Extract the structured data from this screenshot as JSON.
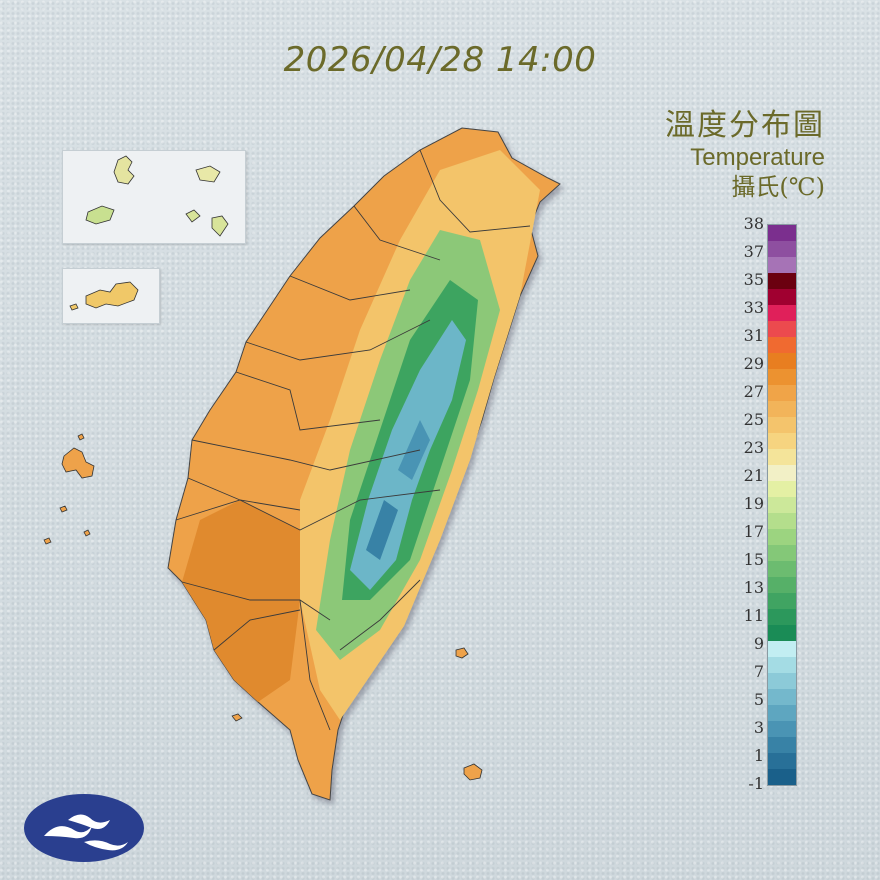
{
  "timestamp": "2026/04/28 14:00",
  "legend": {
    "title_zh": "溫度分布圖",
    "title_en": "Temperature",
    "unit": "攝氏(℃)",
    "ticks": [
      "38",
      "37",
      "35",
      "33",
      "31",
      "29",
      "27",
      "25",
      "23",
      "21",
      "19",
      "17",
      "15",
      "13",
      "11",
      "9",
      "7",
      "5",
      "3",
      "1",
      "-1"
    ],
    "colors": [
      "#7b2f8e",
      "#8e4fa0",
      "#a673b6",
      "#6b0010",
      "#a00030",
      "#e0205a",
      "#ec4a4e",
      "#f06a30",
      "#e87e20",
      "#ec9230",
      "#f0a448",
      "#f2b45a",
      "#f4c46c",
      "#f6d480",
      "#f4e49a",
      "#f2f0c6",
      "#e4f0a4",
      "#cce89a",
      "#b4de8c",
      "#9cd480",
      "#84c878",
      "#6cbc70",
      "#56b068",
      "#40a462",
      "#2c985c",
      "#1a8c56",
      "#c2eef2",
      "#a4dce4",
      "#8ccad8",
      "#74b8cc",
      "#5ea6c0",
      "#4a94b4",
      "#3882a6",
      "#287098",
      "#1a608a"
    ]
  },
  "map": {
    "colors": {
      "hot": "#e08a2e",
      "warm": "#eea24a",
      "mild": "#f3c46a",
      "cool_green": "#8cc878",
      "green": "#3ea460",
      "cold": "#6cb6c8",
      "border": "#3a3a3a"
    }
  },
  "logo": {
    "name": "cwa-logo-icon",
    "bg": "#2a3f8f"
  }
}
